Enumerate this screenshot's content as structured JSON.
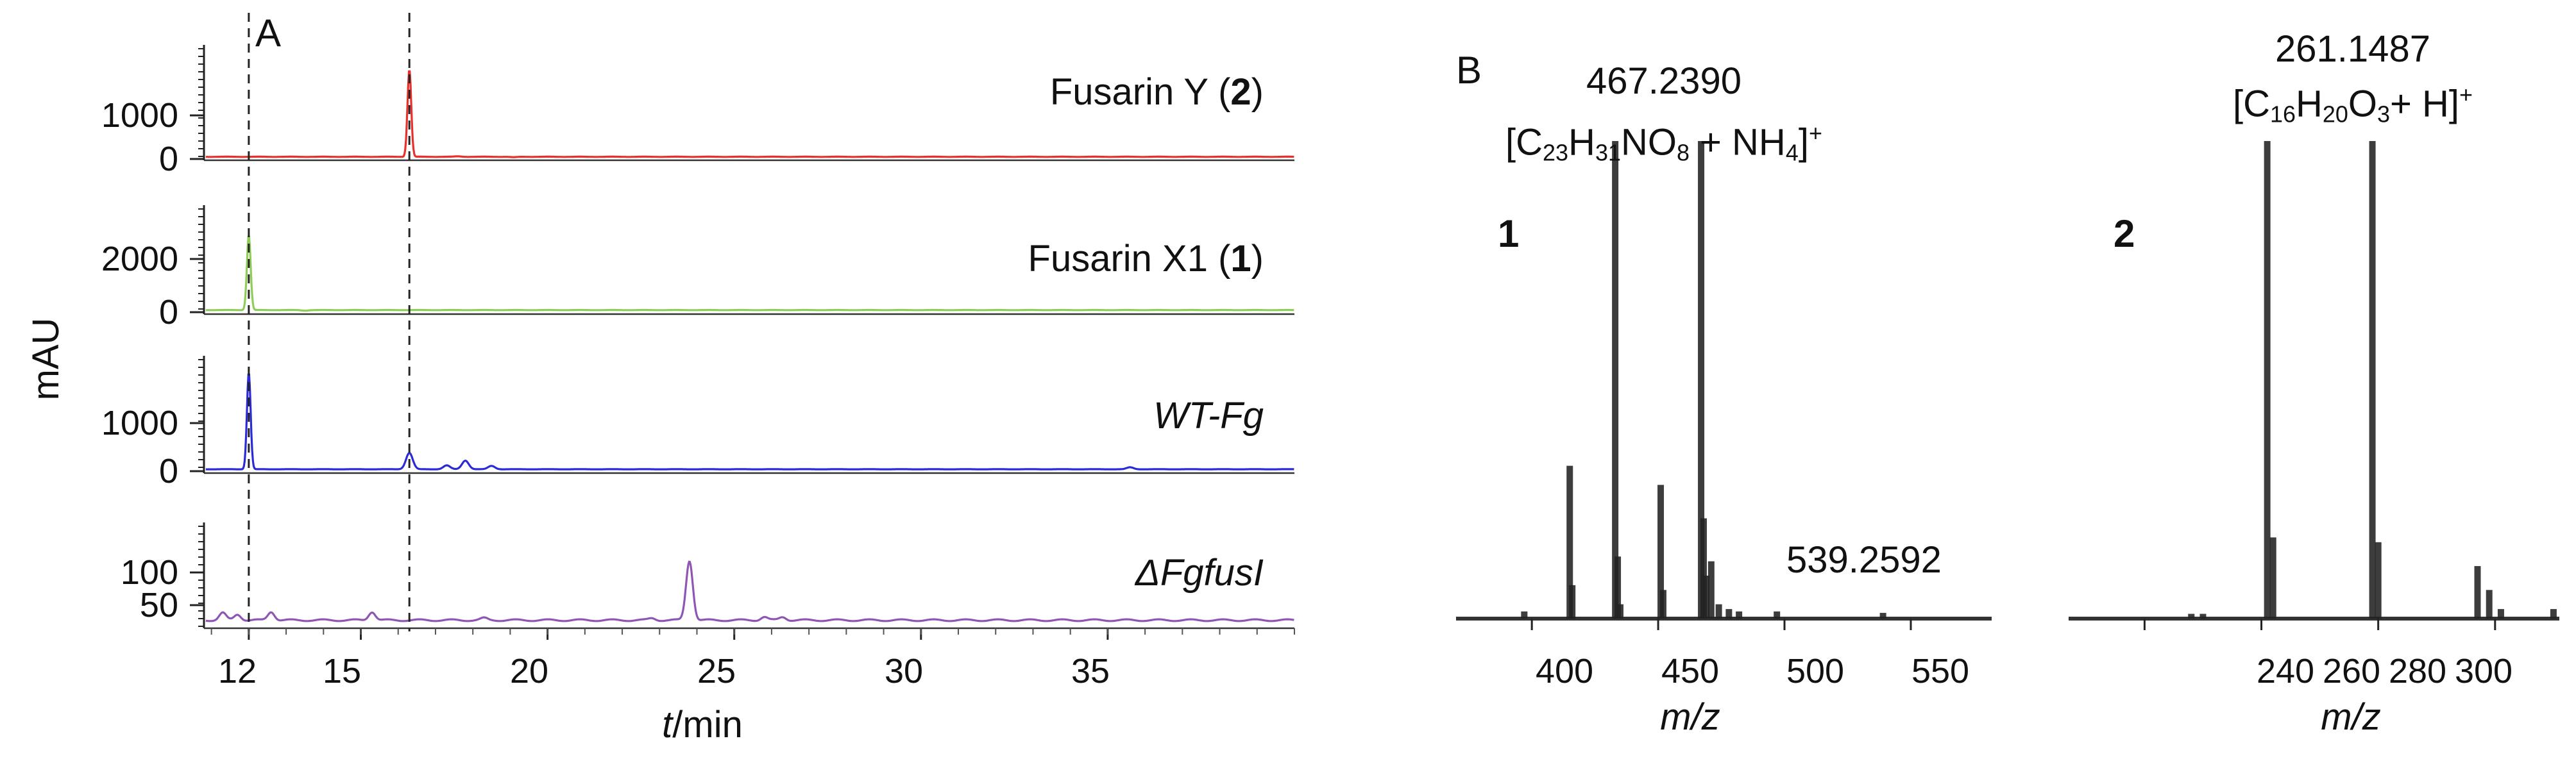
{
  "panel_a": {
    "label": "A"
  },
  "panel_b": {
    "label": "B"
  },
  "chart_data": [
    {
      "type": "line",
      "id": "A-fusarin-y",
      "series": [
        {
          "name": "Fusarin Y (2)",
          "color": "#e8312c",
          "peaks": [
            {
              "x": 16.3,
              "y": 2050
            },
            {
              "x": 17.6,
              "y": 60
            },
            {
              "x": 19.1,
              "y": 40
            }
          ],
          "baseline": 50
        }
      ],
      "label_text": "Fusarin Y (",
      "label_bold": "2",
      "label_close": ")",
      "yticks": [
        "0",
        "1000"
      ],
      "ylim": [
        0,
        2100
      ],
      "xlim": [
        10.8,
        40.0
      ]
    },
    {
      "type": "line",
      "id": "A-fusarin-x1",
      "series": [
        {
          "name": "Fusarin X1 (1)",
          "color": "#8fcc58",
          "peaks": [
            {
              "x": 12.0,
              "y": 2900
            },
            {
              "x": 13.5,
              "y": 60
            }
          ],
          "baseline": 80
        }
      ],
      "label_text": "Fusarin X1  (",
      "label_bold": "1",
      "label_close": ")",
      "yticks": [
        "0",
        "2000"
      ],
      "ylim": [
        0,
        3500
      ],
      "xlim": [
        10.8,
        40.0
      ]
    },
    {
      "type": "line",
      "id": "A-wt-fg",
      "series": [
        {
          "name": "WT-Fg",
          "color": "#2b2bd6",
          "peaks": [
            {
              "x": 12.0,
              "y": 2050
            },
            {
              "x": 16.3,
              "y": 380
            },
            {
              "x": 17.3,
              "y": 120
            },
            {
              "x": 17.8,
              "y": 220
            },
            {
              "x": 18.5,
              "y": 110
            },
            {
              "x": 35.6,
              "y": 80
            }
          ],
          "baseline": 40
        }
      ],
      "label_text": "WT-Fg",
      "yticks": [
        "0",
        "1000"
      ],
      "ylim": [
        0,
        2100
      ],
      "xlim": [
        10.8,
        40.0
      ]
    },
    {
      "type": "line",
      "id": "A-dfgfusi",
      "series": [
        {
          "name": "ΔFgfusI",
          "color": "#8e55b5",
          "peaks": [
            {
              "x": 11.3,
              "y": 38
            },
            {
              "x": 11.7,
              "y": 36
            },
            {
              "x": 12.6,
              "y": 40
            },
            {
              "x": 15.3,
              "y": 40
            },
            {
              "x": 18.3,
              "y": 30
            },
            {
              "x": 22.8,
              "y": 30
            },
            {
              "x": 23.8,
              "y": 118
            },
            {
              "x": 25.8,
              "y": 32
            },
            {
              "x": 26.3,
              "y": 32
            }
          ],
          "baseline": 27
        }
      ],
      "label_text": "ΔFgfusI",
      "yticks": [
        "50",
        "100"
      ],
      "ylim": [
        20,
        140
      ],
      "xlim": [
        10.8,
        40.0
      ]
    },
    {
      "type": "line",
      "id": "A-xaxis",
      "xticks": [
        "12",
        "15",
        "20",
        "25",
        "30",
        "35"
      ],
      "xlabel_italic": "t",
      "xlabel": "/min",
      "ylabel": "mAU",
      "dashed_lines_x": [
        12.0,
        16.3
      ]
    },
    {
      "type": "bar",
      "id": "B-spectrum-1",
      "compound": "1",
      "annotation_mass": "467.2390",
      "annotation_formula": [
        "[C",
        "23",
        "H",
        "31",
        "NO",
        "8",
        " + NH",
        "4",
        "]",
        "+"
      ],
      "side_label": "539.2592",
      "xlabel": "m/z",
      "xticks": [
        "400",
        "450",
        "500",
        "550"
      ],
      "xlim": [
        370,
        582
      ],
      "ylim": [
        0,
        100
      ],
      "peaks": [
        {
          "mz": 397,
          "i": 1.5
        },
        {
          "mz": 415,
          "i": 32
        },
        {
          "mz": 416,
          "i": 7
        },
        {
          "mz": 433,
          "i": 100
        },
        {
          "mz": 434,
          "i": 13
        },
        {
          "mz": 435,
          "i": 3
        },
        {
          "mz": 451,
          "i": 28
        },
        {
          "mz": 452,
          "i": 6
        },
        {
          "mz": 467,
          "i": 100
        },
        {
          "mz": 468,
          "i": 21
        },
        {
          "mz": 469,
          "i": 9
        },
        {
          "mz": 471,
          "i": 12
        },
        {
          "mz": 474,
          "i": 3
        },
        {
          "mz": 478,
          "i": 2
        },
        {
          "mz": 482,
          "i": 1.5
        },
        {
          "mz": 497,
          "i": 1.5
        },
        {
          "mz": 539,
          "i": 1.2
        }
      ]
    },
    {
      "type": "bar",
      "id": "B-spectrum-2",
      "compound": "2",
      "annotation_mass": "261.1487",
      "annotation_formula": [
        "[C",
        "16",
        "H",
        "20",
        "O",
        "3",
        "+ H]",
        "+"
      ],
      "xlabel": "m/z",
      "xticks": [
        "240",
        "260",
        "280",
        "300"
      ],
      "xlim": [
        227,
        311
      ],
      "ylim": [
        0,
        100
      ],
      "peaks": [
        {
          "mz": 248,
          "i": 1
        },
        {
          "mz": 250,
          "i": 1
        },
        {
          "mz": 261,
          "i": 100
        },
        {
          "mz": 262,
          "i": 17
        },
        {
          "mz": 279,
          "i": 100
        },
        {
          "mz": 280,
          "i": 16
        },
        {
          "mz": 297,
          "i": 11
        },
        {
          "mz": 299,
          "i": 6
        },
        {
          "mz": 301,
          "i": 2
        },
        {
          "mz": 310,
          "i": 2
        }
      ]
    }
  ]
}
